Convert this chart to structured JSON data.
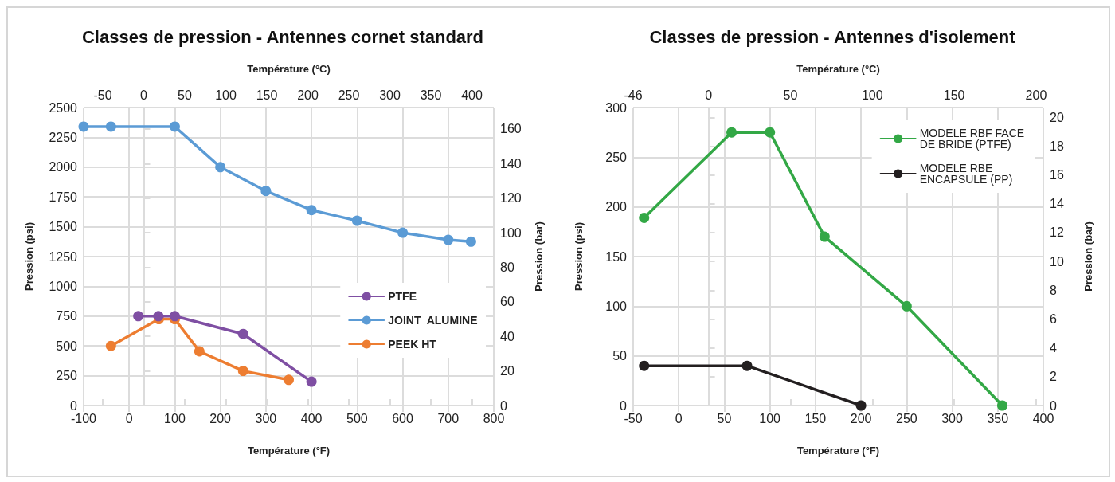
{
  "chart_data": [
    {
      "type": "line",
      "title": "Classes de pression - Antennes cornet standard",
      "xlabel": "Température (°F)",
      "ylabel": "Pression (psi)",
      "x2label": "Température (°C)",
      "y2label": "Pression (bar)",
      "xlim": [
        -100,
        800
      ],
      "xticks": [
        -100,
        0,
        100,
        200,
        300,
        400,
        500,
        600,
        700,
        800
      ],
      "ylim": [
        0,
        2500
      ],
      "yticks": [
        0,
        250,
        500,
        750,
        1000,
        1250,
        1500,
        1750,
        2000,
        2250,
        2500
      ],
      "x2lim": [
        -73.3,
        426.7
      ],
      "x2ticks": [
        -50,
        0,
        50,
        100,
        150,
        200,
        250,
        300,
        350,
        400
      ],
      "y2lim": [
        0,
        172.4
      ],
      "y2ticks": [
        0,
        20,
        40,
        60,
        80,
        100,
        120,
        140,
        160
      ],
      "grid": true,
      "legend": "bottom right",
      "marker": "circle",
      "series": [
        {
          "name": "PTFE",
          "color": "#7f4fa3",
          "x": [
            20,
            64,
            100,
            250,
            400
          ],
          "values": [
            750,
            750,
            750,
            600,
            200
          ]
        },
        {
          "name": "JOINT  ALUMINE",
          "color": "#5b9bd5",
          "x": [
            -100,
            -40,
            100,
            200,
            300,
            400,
            500,
            600,
            700,
            750
          ],
          "values": [
            2340,
            2340,
            2340,
            2000,
            1800,
            1640,
            1550,
            1450,
            1390,
            1375
          ]
        },
        {
          "name": "PEEK HT",
          "color": "#ed7d31",
          "x": [
            -40,
            65,
            100,
            154,
            250,
            350
          ],
          "values": [
            500,
            725,
            725,
            455,
            290,
            215
          ]
        }
      ]
    },
    {
      "type": "line",
      "title": "Classes de pression - Antennes d'isolement",
      "xlabel": "Température (°F)",
      "ylabel": "Pression (psi)",
      "x2label": "Température (°C)",
      "y2label": "Pression (bar)",
      "xlim": [
        -50,
        400
      ],
      "xticks": [
        -50,
        0,
        50,
        100,
        150,
        200,
        250,
        300,
        350,
        400
      ],
      "ylim": [
        0,
        300
      ],
      "yticks": [
        0,
        50,
        100,
        150,
        200,
        250,
        300
      ],
      "x2lim": [
        -46,
        204.4
      ],
      "x2ticks": [
        -46,
        0,
        50,
        100,
        150,
        200
      ],
      "y2lim": [
        0,
        20.68
      ],
      "y2ticks": [
        0,
        2,
        4,
        6,
        8,
        10,
        12,
        14,
        16,
        18,
        20
      ],
      "grid": true,
      "legend": "top right",
      "marker": "circle",
      "series": [
        {
          "name": "MODELE RBF FACE DE BRIDE (PTFE)",
          "color": "#33a846",
          "x": [
            -38,
            58,
            100,
            160,
            250,
            355
          ],
          "values": [
            189,
            275,
            275,
            170,
            100,
            0
          ]
        },
        {
          "name": "MODELE RBE ENCAPSULE (PP)",
          "color": "#231f20",
          "x": [
            -38,
            75,
            200
          ],
          "values": [
            40,
            40,
            0
          ]
        }
      ]
    }
  ]
}
